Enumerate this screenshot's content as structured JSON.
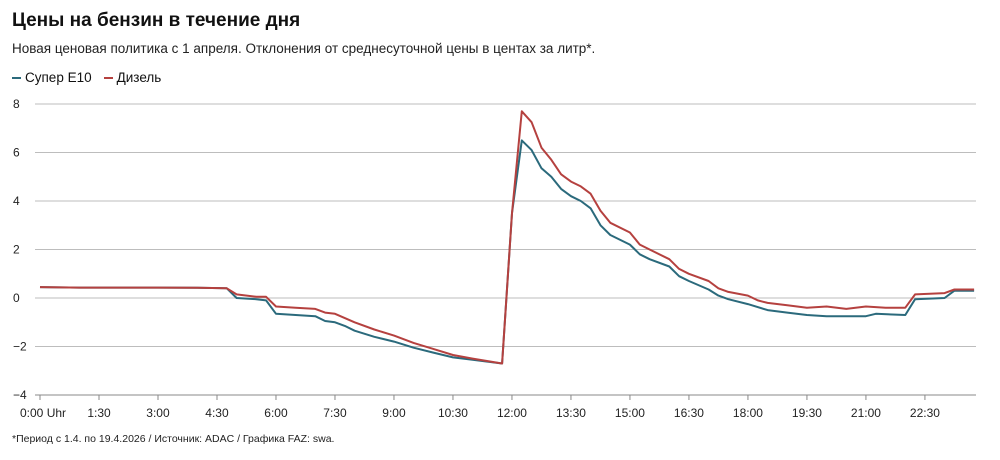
{
  "chart_data": {
    "type": "line",
    "title": "Цены на бензин в течение дня",
    "subtitle": "Новая ценовая политика с 1 апреля. Отклонения от среднесуточной цены в центах за литр*.",
    "footer": "*Период с 1.4. по 19.4.2026  /  Источник: ADAC  /  Графика FAZ: swa.",
    "ylim": [
      -4,
      8
    ],
    "yticks": [
      "8",
      "6",
      "4",
      "2",
      "0",
      "−2",
      "−4"
    ],
    "ytick_values": [
      8,
      6,
      4,
      2,
      0,
      -2,
      -4
    ],
    "xticks": [
      "0:00 Uhr",
      "1:30",
      "3:00",
      "4:30",
      "6:00",
      "7:30",
      "9:00",
      "10:30",
      "12:00",
      "13:30",
      "15:00",
      "16:30",
      "18:00",
      "19:30",
      "21:00",
      "22:30"
    ],
    "grid": true,
    "legend_placement": "top-left",
    "series": [
      {
        "name": "Супер E10",
        "color": "#2b6a7c",
        "points": [
          [
            "0:00",
            0.45
          ],
          [
            "1:00",
            0.43
          ],
          [
            "3:00",
            0.43
          ],
          [
            "4:00",
            0.42
          ],
          [
            "4:45",
            0.4
          ],
          [
            "5:00",
            0.0
          ],
          [
            "5:30",
            -0.05
          ],
          [
            "5:45",
            -0.1
          ],
          [
            "6:00",
            -0.65
          ],
          [
            "7:00",
            -0.75
          ],
          [
            "7:15",
            -0.95
          ],
          [
            "7:30",
            -1.0
          ],
          [
            "7:45",
            -1.15
          ],
          [
            "8:00",
            -1.35
          ],
          [
            "8:30",
            -1.6
          ],
          [
            "9:00",
            -1.8
          ],
          [
            "9:30",
            -2.05
          ],
          [
            "10:00",
            -2.25
          ],
          [
            "10:30",
            -2.45
          ],
          [
            "11:00",
            -2.55
          ],
          [
            "11:45",
            -2.7
          ],
          [
            "12:00",
            3.5
          ],
          [
            "12:15",
            6.5
          ],
          [
            "12:30",
            6.1
          ],
          [
            "12:45",
            5.35
          ],
          [
            "13:00",
            5.0
          ],
          [
            "13:15",
            4.5
          ],
          [
            "13:30",
            4.2
          ],
          [
            "13:45",
            4.0
          ],
          [
            "14:00",
            3.7
          ],
          [
            "14:15",
            3.0
          ],
          [
            "14:30",
            2.6
          ],
          [
            "15:00",
            2.2
          ],
          [
            "15:15",
            1.8
          ],
          [
            "15:30",
            1.6
          ],
          [
            "16:00",
            1.3
          ],
          [
            "16:15",
            0.9
          ],
          [
            "16:30",
            0.7
          ],
          [
            "17:00",
            0.35
          ],
          [
            "17:15",
            0.1
          ],
          [
            "17:30",
            -0.05
          ],
          [
            "18:00",
            -0.25
          ],
          [
            "18:30",
            -0.5
          ],
          [
            "19:00",
            -0.6
          ],
          [
            "19:30",
            -0.7
          ],
          [
            "20:00",
            -0.75
          ],
          [
            "20:30",
            -0.75
          ],
          [
            "21:00",
            -0.75
          ],
          [
            "21:15",
            -0.65
          ],
          [
            "22:00",
            -0.7
          ],
          [
            "22:15",
            -0.05
          ],
          [
            "23:00",
            0.0
          ],
          [
            "23:15",
            0.3
          ],
          [
            "23:45",
            0.3
          ]
        ]
      },
      {
        "name": "Дизель",
        "color": "#b5413f",
        "points": [
          [
            "0:00",
            0.45
          ],
          [
            "1:00",
            0.43
          ],
          [
            "3:00",
            0.43
          ],
          [
            "4:00",
            0.42
          ],
          [
            "4:45",
            0.4
          ],
          [
            "5:00",
            0.15
          ],
          [
            "5:30",
            0.05
          ],
          [
            "5:45",
            0.05
          ],
          [
            "6:00",
            -0.35
          ],
          [
            "6:30",
            -0.4
          ],
          [
            "7:00",
            -0.45
          ],
          [
            "7:15",
            -0.6
          ],
          [
            "7:30",
            -0.65
          ],
          [
            "8:00",
            -1.0
          ],
          [
            "8:30",
            -1.3
          ],
          [
            "9:00",
            -1.55
          ],
          [
            "9:30",
            -1.85
          ],
          [
            "10:00",
            -2.1
          ],
          [
            "10:30",
            -2.35
          ],
          [
            "11:00",
            -2.5
          ],
          [
            "11:45",
            -2.7
          ],
          [
            "12:00",
            3.5
          ],
          [
            "12:15",
            7.7
          ],
          [
            "12:30",
            7.25
          ],
          [
            "12:45",
            6.2
          ],
          [
            "13:00",
            5.7
          ],
          [
            "13:15",
            5.1
          ],
          [
            "13:30",
            4.8
          ],
          [
            "13:45",
            4.6
          ],
          [
            "14:00",
            4.3
          ],
          [
            "14:15",
            3.6
          ],
          [
            "14:30",
            3.1
          ],
          [
            "15:00",
            2.7
          ],
          [
            "15:15",
            2.2
          ],
          [
            "15:30",
            2.0
          ],
          [
            "16:00",
            1.6
          ],
          [
            "16:15",
            1.2
          ],
          [
            "16:30",
            1.0
          ],
          [
            "17:00",
            0.7
          ],
          [
            "17:15",
            0.4
          ],
          [
            "17:30",
            0.25
          ],
          [
            "18:00",
            0.1
          ],
          [
            "18:15",
            -0.1
          ],
          [
            "18:30",
            -0.2
          ],
          [
            "19:00",
            -0.3
          ],
          [
            "19:30",
            -0.4
          ],
          [
            "20:00",
            -0.35
          ],
          [
            "20:30",
            -0.45
          ],
          [
            "21:00",
            -0.35
          ],
          [
            "21:30",
            -0.4
          ],
          [
            "22:00",
            -0.4
          ],
          [
            "22:15",
            0.15
          ],
          [
            "23:00",
            0.2
          ],
          [
            "23:15",
            0.35
          ],
          [
            "23:45",
            0.35
          ]
        ]
      }
    ]
  }
}
